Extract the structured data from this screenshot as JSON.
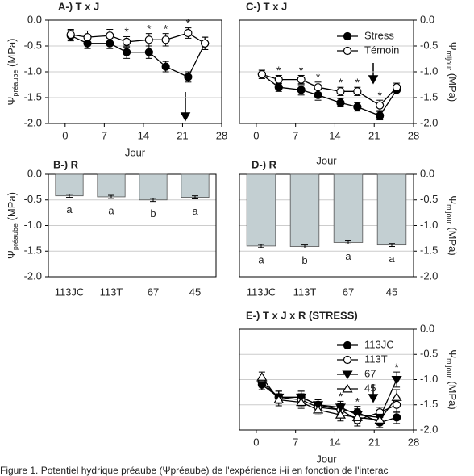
{
  "chart_data": [
    {
      "type": "line",
      "title": "A-) T x J",
      "xlabel": "Jour",
      "ylabel": {
        "symbol": "Ψ",
        "sub": "préaube",
        "unit": " (MPa)"
      },
      "x": [
        1,
        4,
        8,
        11,
        15,
        18,
        22,
        25
      ],
      "series": [
        {
          "name": "Stress",
          "color": "#000000",
          "marker": "circle",
          "values": [
            -0.3,
            -0.45,
            -0.45,
            -0.62,
            -0.62,
            -0.9,
            -1.1,
            -0.45
          ],
          "errors": [
            0.1,
            0.1,
            0.1,
            0.12,
            0.12,
            0.1,
            0.1,
            0.12
          ]
        },
        {
          "name": "Témoin",
          "color": "#ffffff",
          "marker": "circle",
          "values": [
            -0.28,
            -0.33,
            -0.3,
            -0.42,
            -0.38,
            -0.38,
            -0.25,
            -0.45
          ],
          "errors": [
            0.1,
            0.12,
            0.12,
            0.1,
            0.12,
            0.12,
            0.1,
            0.12
          ]
        }
      ],
      "annotations": [
        {
          "text": "*",
          "x": 11
        },
        {
          "text": "*",
          "x": 15
        },
        {
          "text": "*",
          "x": 18
        },
        {
          "text": "*",
          "x": 22
        }
      ],
      "xlim": [
        -3,
        28
      ],
      "xticks": [
        0,
        7,
        14,
        21,
        28
      ],
      "ylim": [
        -2,
        0
      ],
      "yticks": [
        {
          "value": 0,
          "label": "0.0"
        },
        {
          "value": -0.5,
          "label": "-0.5"
        },
        {
          "value": -1,
          "label": "-1.0"
        },
        {
          "value": -1.5,
          "label": "-1.5"
        },
        {
          "value": -2,
          "label": "-2.0"
        }
      ],
      "grid": true,
      "axis_side": "left"
    },
    {
      "type": "bar",
      "title": "B-) R",
      "ylabel": {
        "symbol": "Ψ",
        "sub": "préaube",
        "unit": " (MPa)"
      },
      "categories": [
        "113JC",
        "113T",
        "67",
        "45"
      ],
      "values": [
        -0.42,
        -0.44,
        -0.5,
        -0.45
      ],
      "errors": [
        0.03,
        0.03,
        0.03,
        0.03
      ],
      "bar_labels": [
        "a",
        "a",
        "b",
        "a"
      ],
      "color": "#c3cfd2",
      "ylim": [
        -2,
        0
      ],
      "yticks": [
        {
          "value": 0,
          "label": "0.0"
        },
        {
          "value": -0.5,
          "label": "-0.5"
        },
        {
          "value": -1,
          "label": "-1.0"
        },
        {
          "value": -1.5,
          "label": "-1.5"
        },
        {
          "value": -2,
          "label": "-2.0"
        }
      ],
      "grid": true,
      "axis_side": "left"
    },
    {
      "type": "line",
      "title": "C-) T x J",
      "xlabel": "Jour",
      "ylabel": {
        "symbol": "Ψ",
        "sub": "mijour",
        "unit": " (MPa)"
      },
      "x": [
        1,
        4,
        8,
        11,
        15,
        18,
        22,
        25
      ],
      "series": [
        {
          "name": "Stress",
          "color": "#000000",
          "marker": "circle",
          "values": [
            -1.05,
            -1.3,
            -1.35,
            -1.45,
            -1.6,
            -1.68,
            -1.85,
            -1.35
          ],
          "errors": [
            0.08,
            0.08,
            0.1,
            0.1,
            0.08,
            0.08,
            0.08,
            0.08
          ]
        },
        {
          "name": "Témoin",
          "color": "#ffffff",
          "marker": "circle",
          "values": [
            -1.05,
            -1.15,
            -1.15,
            -1.3,
            -1.38,
            -1.38,
            -1.65,
            -1.3
          ],
          "errors": [
            0.08,
            0.08,
            0.08,
            0.1,
            0.08,
            0.08,
            0.1,
            0.08
          ]
        }
      ],
      "annotations": [
        {
          "text": "*",
          "x": 4
        },
        {
          "text": "*",
          "x": 8
        },
        {
          "text": "*",
          "x": 11
        },
        {
          "text": "*",
          "x": 15
        },
        {
          "text": "*",
          "x": 18
        },
        {
          "text": "*",
          "x": 22
        }
      ],
      "xlim": [
        -3,
        28
      ],
      "xticks": [
        0,
        7,
        14,
        21,
        28
      ],
      "ylim": [
        -2,
        0
      ],
      "yticks": [
        {
          "value": 0,
          "label": "0.0"
        },
        {
          "value": -0.5,
          "label": "-0.5"
        },
        {
          "value": -1,
          "label": "-1.0"
        },
        {
          "value": -1.5,
          "label": "-1.5"
        },
        {
          "value": -2,
          "label": "-2.0"
        }
      ],
      "grid": true,
      "axis_side": "right",
      "legend": "upper right"
    },
    {
      "type": "bar",
      "title": "D-) R",
      "ylabel": {
        "symbol": "Ψ",
        "sub": "mijour",
        "unit": " (MPa)"
      },
      "categories": [
        "113JC",
        "113T",
        "67",
        "45"
      ],
      "values": [
        -1.4,
        -1.41,
        -1.33,
        -1.38
      ],
      "errors": [
        0.03,
        0.03,
        0.03,
        0.03
      ],
      "bar_labels": [
        "a",
        "b",
        "a",
        "a"
      ],
      "color": "#c3cfd2",
      "ylim": [
        -2,
        0
      ],
      "yticks": [
        {
          "value": 0,
          "label": "0.0"
        },
        {
          "value": -0.5,
          "label": "-0.5"
        },
        {
          "value": -1,
          "label": "-1.0"
        },
        {
          "value": -1.5,
          "label": "-1.5"
        },
        {
          "value": -2,
          "label": "-2.0"
        }
      ],
      "grid": true,
      "axis_side": "right"
    },
    {
      "type": "line",
      "title": "E-) T x J x R (STRESS)",
      "xlabel": "Jour",
      "ylabel": {
        "symbol": "Ψ",
        "sub": "mijour",
        "unit": " (MPa)"
      },
      "x": [
        1,
        4,
        8,
        11,
        15,
        18,
        22,
        25
      ],
      "series": [
        {
          "name": "113JC",
          "color": "#000000",
          "marker": "circle",
          "values": [
            -1.1,
            -1.35,
            -1.35,
            -1.5,
            -1.6,
            -1.65,
            -1.85,
            -1.75
          ],
          "errors": [
            0.1,
            0.12,
            0.12,
            0.1,
            0.12,
            0.12,
            0.1,
            0.12
          ]
        },
        {
          "name": "113T",
          "color": "#ffffff",
          "marker": "circle",
          "values": [
            -1.05,
            -1.35,
            -1.4,
            -1.55,
            -1.6,
            -1.8,
            -1.65,
            -1.5
          ],
          "errors": [
            0.1,
            0.12,
            0.12,
            0.1,
            0.12,
            0.12,
            0.1,
            0.15
          ]
        },
        {
          "name": "67",
          "color": "#000000",
          "marker": "triangle-down",
          "values": [
            -1.1,
            -1.35,
            -1.35,
            -1.5,
            -1.55,
            -1.7,
            -1.75,
            -1.0
          ],
          "errors": [
            0.1,
            0.12,
            0.12,
            0.1,
            0.12,
            0.12,
            0.1,
            0.15
          ]
        },
        {
          "name": "45",
          "color": "#ffffff",
          "marker": "triangle-up",
          "values": [
            -0.95,
            -1.4,
            -1.45,
            -1.6,
            -1.7,
            -1.75,
            -1.8,
            -1.35
          ],
          "errors": [
            0.1,
            0.12,
            0.12,
            0.1,
            0.12,
            0.12,
            0.1,
            0.15
          ]
        }
      ],
      "annotations": [
        {
          "text": "*",
          "x": 15
        },
        {
          "text": "*",
          "x": 18
        },
        {
          "text": "*",
          "x": 25
        }
      ],
      "xlim": [
        -3,
        28
      ],
      "xticks": [
        0,
        7,
        14,
        21,
        28
      ],
      "ylim": [
        -2,
        0
      ],
      "yticks": [
        {
          "value": 0,
          "label": "0.0"
        },
        {
          "value": -0.5,
          "label": "-0.5"
        },
        {
          "value": -1,
          "label": "-1.0"
        },
        {
          "value": -1.5,
          "label": "-1.5"
        },
        {
          "value": -2,
          "label": "-2.0"
        }
      ],
      "grid": true,
      "axis_side": "right",
      "legend": "upper right"
    }
  ],
  "caption": "Figure 1. Potentiel hydrique préaube (Ψpréaube) de l'expérience i-ii en fonction de l'interac"
}
